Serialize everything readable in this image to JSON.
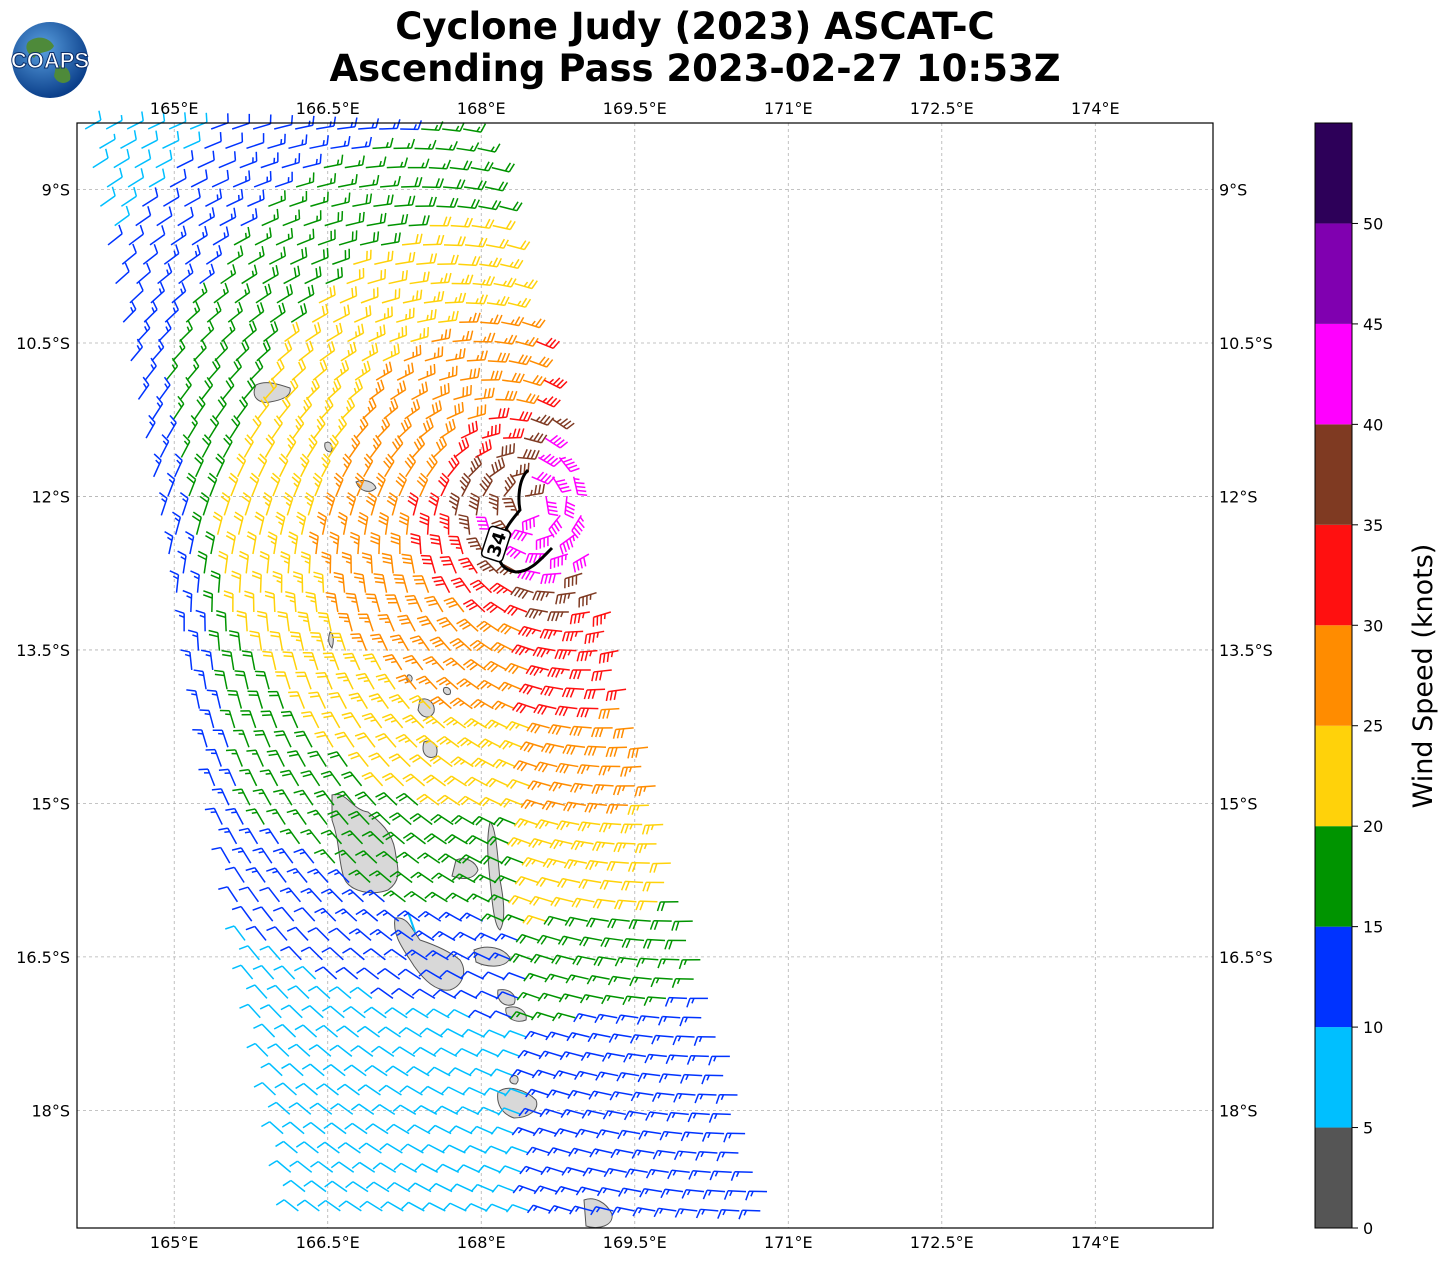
{
  "title": {
    "line1": "Cyclone Judy (2023) ASCAT-C",
    "line2": "Ascending Pass 2023-02-27 10:53Z"
  },
  "logo": {
    "text": "COAPS"
  },
  "map": {
    "lon_range": [
      164.05,
      175.15
    ],
    "lat_range": [
      -19.15,
      -8.35
    ],
    "lon_ticks": [
      "165°E",
      "166.5°E",
      "168°E",
      "169.5°E",
      "171°E",
      "172.5°E",
      "174°E"
    ],
    "lat_ticks": [
      "9°S",
      "10.5°S",
      "12°S",
      "13.5°S",
      "15°S",
      "16.5°S",
      "18°S"
    ],
    "contour_label": "34",
    "land_color": "#d8d8d8",
    "grid": true
  },
  "colorbar": {
    "label": "Wind Speed (knots)",
    "ticks": [
      "0",
      "5",
      "10",
      "15",
      "20",
      "25",
      "30",
      "35",
      "40",
      "45",
      "50"
    ],
    "bins": [
      {
        "min": 0,
        "max": 5,
        "color": "#555555"
      },
      {
        "min": 5,
        "max": 10,
        "color": "#00bfff"
      },
      {
        "min": 10,
        "max": 15,
        "color": "#0033ff"
      },
      {
        "min": 15,
        "max": 20,
        "color": "#009400"
      },
      {
        "min": 20,
        "max": 25,
        "color": "#ffd20a"
      },
      {
        "min": 25,
        "max": 30,
        "color": "#ff8c00"
      },
      {
        "min": 30,
        "max": 35,
        "color": "#ff1010"
      },
      {
        "min": 35,
        "max": 40,
        "color": "#7f3a22"
      },
      {
        "min": 40,
        "max": 45,
        "color": "#ff00ff"
      },
      {
        "min": 45,
        "max": 50,
        "color": "#8000b0"
      },
      {
        "min": 50,
        "max": 55,
        "color": "#2d0059"
      }
    ]
  }
}
